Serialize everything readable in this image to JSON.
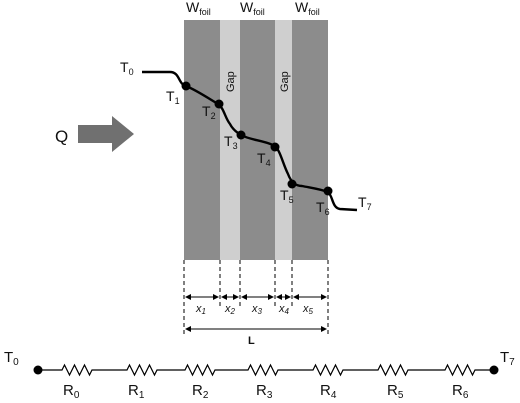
{
  "foil_label": {
    "main": "W",
    "sub": "foil"
  },
  "gap_label": "Gap",
  "heat_label": "Q",
  "length_label": "L",
  "thicknesses": [
    {
      "main": "x",
      "sub": "1"
    },
    {
      "main": "x",
      "sub": "2"
    },
    {
      "main": "x",
      "sub": "3"
    },
    {
      "main": "x",
      "sub": "4"
    },
    {
      "main": "x",
      "sub": "5"
    }
  ],
  "temperatures": [
    {
      "main": "T",
      "sub": "0"
    },
    {
      "main": "T",
      "sub": "1"
    },
    {
      "main": "T",
      "sub": "2"
    },
    {
      "main": "T",
      "sub": "3"
    },
    {
      "main": "T",
      "sub": "4"
    },
    {
      "main": "T",
      "sub": "5"
    },
    {
      "main": "T",
      "sub": "6"
    },
    {
      "main": "T",
      "sub": "7"
    }
  ],
  "resistors": [
    {
      "main": "R",
      "sub": "0"
    },
    {
      "main": "R",
      "sub": "1"
    },
    {
      "main": "R",
      "sub": "2"
    },
    {
      "main": "R",
      "sub": "3"
    },
    {
      "main": "R",
      "sub": "4"
    },
    {
      "main": "R",
      "sub": "5"
    },
    {
      "main": "R",
      "sub": "6"
    }
  ],
  "colors": {
    "foil": "#8c8c8c",
    "gap": "#cfcfcf",
    "arrow": "#707070",
    "line": "#000000"
  }
}
